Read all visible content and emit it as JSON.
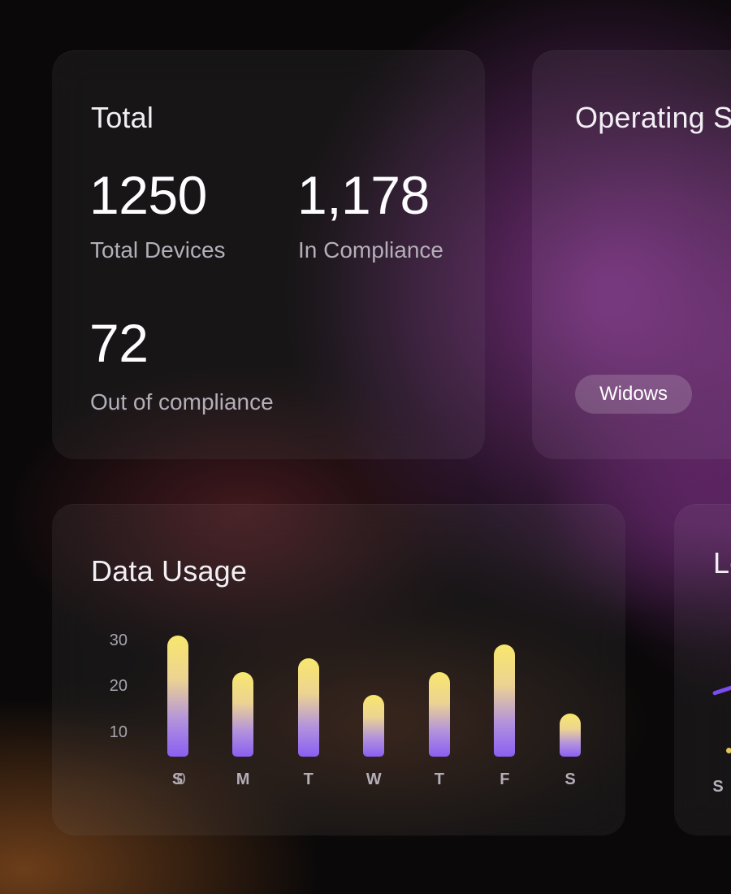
{
  "colors": {
    "background_base": "#0a0809",
    "glow_magenta": "#9a3ea4",
    "glow_maroon": "#882e38",
    "glow_orange": "#cd732a",
    "card_fill": "rgba(255,255,255,0.055)",
    "title_text": "#f2eff4",
    "value_text": "#fdfcfe",
    "label_text": "#b4aeb8",
    "axis_text": "#a8a3ad",
    "pill_fill": "rgba(255,255,255,0.17)",
    "pill_text": "#ffffff"
  },
  "cards": {
    "total": {
      "title": "Total",
      "stats": [
        {
          "value": "1250",
          "label": "Total Devices"
        },
        {
          "value": "1,178",
          "label": "In Compliance"
        },
        {
          "value": "72",
          "label": "Out of compliance"
        }
      ]
    },
    "operating_systems": {
      "title": "Operating S",
      "badges": [
        {
          "label": "Widows"
        }
      ]
    },
    "data_usage": {
      "title": "Data Usage"
    },
    "right_partial": {
      "title": "Lo"
    }
  },
  "chart_data": [
    {
      "type": "bar",
      "title": "Data Usage",
      "categories": [
        "S",
        "M",
        "T",
        "W",
        "T",
        "F",
        "S"
      ],
      "values": [
        31,
        23,
        26,
        18,
        23,
        29,
        14
      ],
      "y_ticks": [
        10,
        20,
        30
      ],
      "origin_label": "0",
      "ylim": [
        0,
        34
      ],
      "xlabel": "",
      "ylabel": "",
      "grid": false,
      "legend": false,
      "bar_color_top": "#f8e76d",
      "bar_color_bottom": "#8a5ff2"
    },
    {
      "type": "line",
      "visible_x_labels": [
        "S"
      ],
      "line_color": "#7b4cf0",
      "point_color": "#e6c55a",
      "note": "chart mostly clipped at right edge of viewport"
    }
  ]
}
